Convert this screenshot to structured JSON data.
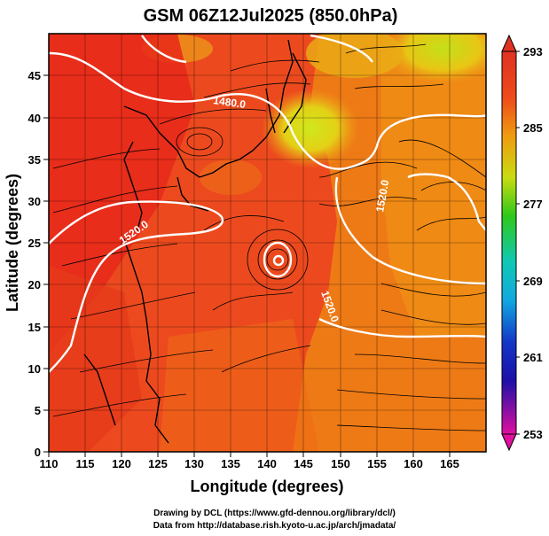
{
  "title": "GSM 06Z12Jul2025 (850.0hPa)",
  "x_label": "Longitude (degrees)",
  "y_label": "Latitude  (degrees)",
  "x_ticks": [
    "110",
    "115",
    "120",
    "125",
    "130",
    "135",
    "140",
    "145",
    "150",
    "155",
    "160",
    "165"
  ],
  "y_ticks": [
    "0",
    "5",
    "10",
    "15",
    "20",
    "25",
    "30",
    "35",
    "40",
    "45"
  ],
  "colorbar_ticks": [
    "293",
    "285",
    "277",
    "269",
    "261",
    "253"
  ],
  "contour_labels": [
    "1480.0",
    "1520.0",
    "1520.0",
    "1520.0"
  ],
  "credits": {
    "line1": "Drawing by DCL (https://www.gfd-dennou.org/library/dcl/)",
    "line2": "Data from http://database.rish.kyoto-u.ac.jp/arch/jmadata/"
  },
  "colors": {
    "warm_field": "#ee3a1c",
    "hot_field": "#e8201a",
    "cool_field": "#b8e21a",
    "mid_field": "#ee7418",
    "contour": "#ffffff",
    "streamline": "#000000"
  },
  "map": {
    "lon_range": [
      110,
      170
    ],
    "lat_range": [
      0,
      50
    ],
    "variable": "temperature (K)",
    "colorbar_range": [
      253,
      293
    ],
    "contours": "geopotential height",
    "overlay": "wind streamlines",
    "feature": "closed low near 141E 25N"
  }
}
